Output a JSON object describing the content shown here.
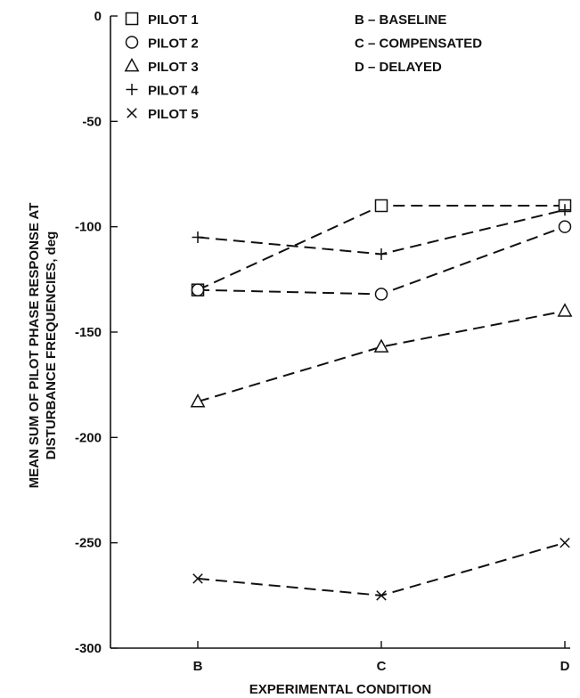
{
  "chart_data": {
    "type": "line",
    "categories": [
      "B",
      "C",
      "D"
    ],
    "xlabel": "EXPERIMENTAL CONDITION",
    "ylabel_lines": [
      "MEAN SUM OF PILOT PHASE RESPONSE AT",
      "DISTURBANCE FREQUENCIES, deg"
    ],
    "ylim": [
      -300,
      0
    ],
    "yticks": [
      0,
      -50,
      -100,
      -150,
      -200,
      -250,
      -300
    ],
    "grid": false,
    "legend_position": "top-left",
    "series": [
      {
        "name": "PILOT 1",
        "marker": "square",
        "values": [
          -130,
          -90,
          -90
        ]
      },
      {
        "name": "PILOT 2",
        "marker": "circle",
        "values": [
          -130,
          -132,
          -100
        ]
      },
      {
        "name": "PILOT 3",
        "marker": "triangle",
        "values": [
          -183,
          -157,
          -140
        ]
      },
      {
        "name": "PILOT 4",
        "marker": "plus",
        "values": [
          -105,
          -113,
          -92
        ]
      },
      {
        "name": "PILOT 5",
        "marker": "x",
        "values": [
          -267,
          -275,
          -250
        ]
      }
    ],
    "condition_legend": [
      {
        "key": "B",
        "text": "B – BASELINE"
      },
      {
        "key": "C",
        "text": "C – COMPENSATED"
      },
      {
        "key": "D",
        "text": "D – DELAYED"
      }
    ]
  }
}
